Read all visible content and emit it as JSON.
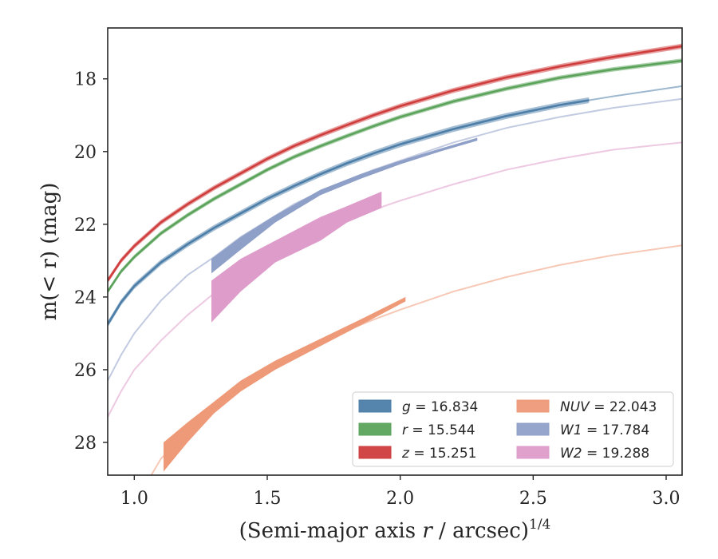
{
  "chart_data": {
    "type": "line",
    "xlabel": "(Semi-major axis r / arcsec)",
    "xlabel_var": "r",
    "xlabel_exponent": "1/4",
    "ylabel": "m(< r) (mag)",
    "xlim": [
      0.9,
      3.06
    ],
    "ylim": [
      28.9,
      16.6
    ],
    "y_inverted": true,
    "grid": false,
    "x_ticks": [
      1.0,
      1.5,
      2.0,
      2.5,
      3.0
    ],
    "x_tick_labels": [
      "1.0",
      "1.5",
      "2.0",
      "2.5",
      "3.0"
    ],
    "y_ticks": [
      18,
      20,
      22,
      24,
      26,
      28
    ],
    "y_tick_labels": [
      "18",
      "20",
      "22",
      "24",
      "26",
      "28"
    ],
    "legend_position": "lower-right",
    "series": [
      {
        "key": "g",
        "name": "g = 16.834",
        "color": "#4c7ea8",
        "x": [
          0.9,
          0.95,
          1.0,
          1.1,
          1.2,
          1.3,
          1.4,
          1.5,
          1.6,
          1.7,
          1.8,
          1.9,
          2.0,
          2.2,
          2.4,
          2.6,
          2.8,
          3.06
        ],
        "y": [
          24.75,
          24.15,
          23.7,
          23.05,
          22.55,
          22.1,
          21.7,
          21.3,
          20.95,
          20.62,
          20.32,
          20.05,
          19.8,
          19.38,
          19.02,
          18.72,
          18.48,
          18.2
        ],
        "measured_until": 2.71,
        "band": 0.08
      },
      {
        "key": "r",
        "name": "r = 15.544",
        "color": "#5ba35b",
        "x": [
          0.9,
          0.95,
          1.0,
          1.1,
          1.2,
          1.3,
          1.4,
          1.5,
          1.6,
          1.7,
          1.8,
          1.9,
          2.0,
          2.2,
          2.4,
          2.6,
          2.8,
          3.06
        ],
        "y": [
          23.85,
          23.3,
          22.9,
          22.25,
          21.75,
          21.3,
          20.9,
          20.5,
          20.15,
          19.85,
          19.57,
          19.3,
          19.05,
          18.62,
          18.27,
          17.97,
          17.74,
          17.5
        ],
        "measured_until": 3.06,
        "band": 0.06
      },
      {
        "key": "z",
        "name": "z = 15.251",
        "color": "#cf3d3d",
        "x": [
          0.9,
          0.95,
          1.0,
          1.1,
          1.2,
          1.3,
          1.4,
          1.5,
          1.6,
          1.7,
          1.8,
          1.9,
          2.0,
          2.2,
          2.4,
          2.6,
          2.8,
          3.06
        ],
        "y": [
          23.55,
          23.0,
          22.6,
          21.95,
          21.45,
          21.0,
          20.6,
          20.2,
          19.85,
          19.55,
          19.27,
          19.0,
          18.75,
          18.32,
          17.96,
          17.66,
          17.4,
          17.1
        ],
        "measured_until": 3.06,
        "band": 0.07
      },
      {
        "key": "nuv",
        "name": "NUV = 22.043",
        "color": "#ee9a78",
        "x": [
          1.0,
          1.1,
          1.2,
          1.3,
          1.4,
          1.5,
          1.6,
          1.7,
          1.8,
          1.9,
          2.0,
          2.2,
          2.4,
          2.6,
          2.8,
          3.06
        ],
        "y": [
          29.7,
          28.45,
          27.7,
          27.0,
          26.45,
          26.0,
          25.6,
          25.25,
          24.92,
          24.62,
          24.35,
          23.85,
          23.45,
          23.12,
          22.85,
          22.58
        ],
        "measured_from": 1.11,
        "measured_until": 2.02,
        "band_x": [
          1.11,
          1.2,
          1.3,
          1.4,
          1.53,
          1.7,
          1.85,
          2.02
        ],
        "band_upper": [
          28.0,
          27.45,
          26.88,
          26.3,
          25.75,
          25.15,
          24.62,
          24.0
        ],
        "band_lower": [
          28.8,
          28.0,
          27.2,
          26.6,
          26.0,
          25.35,
          24.78,
          24.12
        ]
      },
      {
        "key": "w1",
        "name": "W1 = 17.784",
        "color": "#8fa0c8",
        "x": [
          0.9,
          0.95,
          1.0,
          1.1,
          1.2,
          1.3,
          1.4,
          1.5,
          1.6,
          1.7,
          1.8,
          1.9,
          2.0,
          2.2,
          2.4,
          2.6,
          2.8,
          3.06
        ],
        "y": [
          26.3,
          25.6,
          25.0,
          24.1,
          23.4,
          22.9,
          22.35,
          21.9,
          21.45,
          21.1,
          20.8,
          20.5,
          20.25,
          19.75,
          19.35,
          19.05,
          18.8,
          18.55
        ],
        "measured_from": 1.29,
        "measured_until": 2.29,
        "band_x": [
          1.29,
          1.4,
          1.53,
          1.7,
          1.85,
          2.0,
          2.15,
          2.29
        ],
        "band_upper": [
          22.95,
          22.35,
          21.75,
          21.05,
          20.62,
          20.25,
          19.92,
          19.62
        ],
        "band_lower": [
          23.35,
          22.7,
          21.95,
          21.2,
          20.75,
          20.35,
          20.0,
          19.7
        ]
      },
      {
        "key": "w2",
        "name": "W2 = 19.288",
        "color": "#de9cca",
        "x": [
          0.9,
          0.95,
          1.0,
          1.1,
          1.2,
          1.3,
          1.4,
          1.5,
          1.6,
          1.7,
          1.8,
          1.9,
          2.0,
          2.2,
          2.4,
          2.6,
          2.8,
          3.06
        ],
        "y": [
          27.3,
          26.6,
          26.0,
          25.2,
          24.5,
          23.9,
          23.4,
          22.95,
          22.55,
          22.2,
          21.88,
          21.6,
          21.35,
          20.9,
          20.5,
          20.2,
          19.95,
          19.75
        ],
        "measured_from": 1.29,
        "measured_until": 1.93,
        "band_x": [
          1.29,
          1.4,
          1.53,
          1.7,
          1.8,
          1.93
        ],
        "band_upper": [
          23.55,
          22.95,
          22.45,
          21.8,
          21.5,
          21.1
        ],
        "band_lower": [
          24.7,
          23.85,
          23.05,
          22.45,
          21.95,
          21.55
        ]
      }
    ],
    "legend_entries": [
      {
        "series_key": "g",
        "math": "g",
        "value": "16.834"
      },
      {
        "series_key": "r",
        "math": "r",
        "value": "15.544"
      },
      {
        "series_key": "z",
        "math": "z",
        "value": "15.251"
      },
      {
        "series_key": "nuv",
        "math": "NUV",
        "value": "22.043"
      },
      {
        "series_key": "w1",
        "math": "W1",
        "value": "17.784"
      },
      {
        "series_key": "w2",
        "math": "W2",
        "value": "19.288"
      }
    ]
  }
}
